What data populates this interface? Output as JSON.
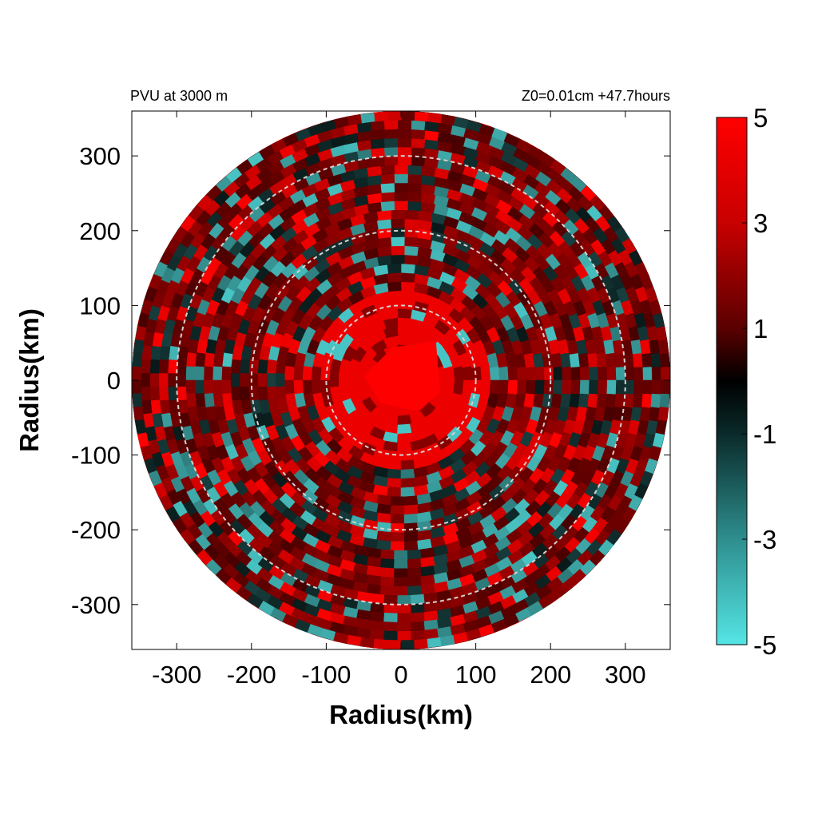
{
  "chart_data": {
    "type": "heatmap",
    "title_left": "PVU at  3000 m",
    "title_right": "Z0=0.01cm  +47.7hours",
    "xlabel": "Radius(km)",
    "ylabel": "Radius(km)",
    "xlim": [
      -360,
      360
    ],
    "ylim": [
      -360,
      360
    ],
    "x_ticks": [
      -300,
      -200,
      -100,
      0,
      100,
      200,
      300
    ],
    "y_ticks": [
      300,
      200,
      100,
      0,
      -100,
      -200,
      -300
    ],
    "domain_radius_km": 360,
    "reference_circles_km": [
      100,
      200,
      300
    ],
    "colorbar": {
      "min": -5,
      "max": 5,
      "ticks": [
        5,
        3,
        1,
        -1,
        -3,
        -5
      ],
      "colors": {
        "high": "#ff0000",
        "mid": "#000000",
        "low": "#55e5e5"
      }
    },
    "core": {
      "value": 5,
      "radius_km": 55
    },
    "grid": false
  }
}
